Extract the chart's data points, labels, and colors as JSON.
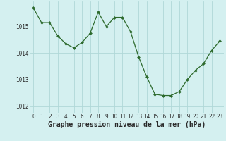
{
  "x": [
    0,
    1,
    2,
    3,
    4,
    5,
    6,
    7,
    8,
    9,
    10,
    11,
    12,
    13,
    14,
    15,
    16,
    17,
    18,
    19,
    20,
    21,
    22,
    23
  ],
  "y": [
    1015.7,
    1015.15,
    1015.15,
    1014.65,
    1014.35,
    1014.2,
    1014.4,
    1014.75,
    1015.55,
    1015.0,
    1015.35,
    1015.35,
    1014.8,
    1013.85,
    1013.1,
    1012.45,
    1012.4,
    1012.4,
    1012.55,
    1013.0,
    1013.35,
    1013.6,
    1014.1,
    1014.45
  ],
  "line_color": "#2d6a2d",
  "marker": "D",
  "marker_size": 2.0,
  "bg_color": "#d4f0f0",
  "grid_color": "#b0d8d8",
  "ylabel_ticks": [
    1012,
    1013,
    1014,
    1015
  ],
  "xtick_labels": [
    "0",
    "1",
    "2",
    "3",
    "4",
    "5",
    "6",
    "7",
    "8",
    "9",
    "10",
    "11",
    "12",
    "13",
    "14",
    "15",
    "16",
    "17",
    "18",
    "19",
    "20",
    "21",
    "22",
    "23"
  ],
  "ylim": [
    1011.75,
    1015.95
  ],
  "xlim": [
    -0.5,
    23.5
  ],
  "xlabel": "Graphe pression niveau de la mer (hPa)",
  "xlabel_fontsize": 7.0,
  "tick_fontsize": 5.5
}
